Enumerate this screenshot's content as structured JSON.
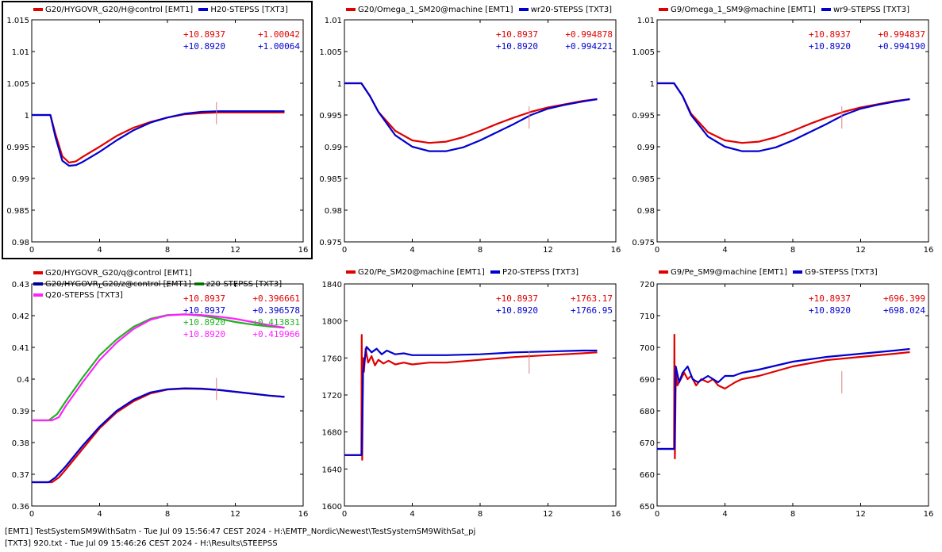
{
  "colors": {
    "emt": "#e00000",
    "txt": "#0000d0",
    "green": "#20b020",
    "magenta": "#ff20ff",
    "cursor": "#e08080"
  },
  "footer": {
    "line1": "[EMT1] TestSystemSM9WithSatm - Tue Jul 09 15:56:47 CEST 2024 - H:\\EMTP_Nordic\\Newest\\TestSystemSM9WithSat_pj",
    "line2": "[TXT3] 920.txt - Tue Jul 09 15:46:26 CEST 2024 - H:\\Results\\STEEPSS"
  },
  "chart_data": [
    {
      "type": "line",
      "legend": [
        {
          "name": "G20/HYGOVR_G20/H@control [EMT1]",
          "color": "emt"
        },
        {
          "name": "H20-STEPSS [TXT3]",
          "color": "txt"
        }
      ],
      "xlim": [
        0,
        16
      ],
      "xticks": [
        "0",
        "4",
        "8",
        "12",
        "16"
      ],
      "ylim": [
        0.98,
        1.015
      ],
      "yticks": [
        "1.015",
        "1.01",
        "1.005",
        "1",
        "0.995",
        "0.99",
        "0.985",
        "0.98"
      ],
      "cursor_x": 10.89,
      "readouts": [
        {
          "t": "+10.8937",
          "v": "+1.00042",
          "color": "emt"
        },
        {
          "t": "+10.8920",
          "v": "+1.00064",
          "color": "txt"
        }
      ],
      "series": [
        {
          "name": "G20/HYGOVR_G20/H@control [EMT1]",
          "color": "emt",
          "x": [
            0,
            1.1,
            1.4,
            1.8,
            2.2,
            2.6,
            3,
            4,
            5,
            6,
            7,
            8,
            9,
            10,
            11,
            12,
            13,
            14,
            14.9
          ],
          "y": [
            1,
            1,
            0.997,
            0.9935,
            0.9925,
            0.9927,
            0.9934,
            0.995,
            0.9967,
            0.998,
            0.9989,
            0.9996,
            1.0001,
            1.0003,
            1.0004,
            1.0004,
            1.0004,
            1.0004,
            1.0004
          ]
        },
        {
          "name": "H20-STEPSS [TXT3]",
          "color": "txt",
          "x": [
            0,
            1.1,
            1.4,
            1.8,
            2.2,
            2.6,
            3,
            4,
            5,
            6,
            7,
            8,
            9,
            10,
            11,
            12,
            13,
            14,
            14.9
          ],
          "y": [
            1,
            1,
            0.9965,
            0.9928,
            0.992,
            0.9921,
            0.9926,
            0.9942,
            0.996,
            0.9976,
            0.9988,
            0.9996,
            1.0002,
            1.0005,
            1.0006,
            1.0006,
            1.0006,
            1.0006,
            1.0006
          ]
        }
      ]
    },
    {
      "type": "line",
      "legend": [
        {
          "name": "G20/Omega_1_SM20@machine [EMT1]",
          "color": "emt"
        },
        {
          "name": "wr20-STEPSS [TXT3]",
          "color": "txt"
        }
      ],
      "xlim": [
        0,
        16
      ],
      "xticks": [
        "0",
        "4",
        "8",
        "12",
        "16"
      ],
      "ylim": [
        0.975,
        1.01
      ],
      "yticks": [
        "1.01",
        "1.005",
        "1",
        "0.995",
        "0.99",
        "0.985",
        "0.98",
        "0.975"
      ],
      "cursor_x": 10.89,
      "readouts": [
        {
          "t": "+10.8937",
          "v": "+0.994878",
          "color": "emt"
        },
        {
          "t": "+10.8920",
          "v": "+0.994221",
          "color": "txt"
        }
      ],
      "series": [
        {
          "name": "G20/Omega_1_SM20@machine [EMT1]",
          "color": "emt",
          "x": [
            0,
            1,
            1.5,
            2,
            3,
            4,
            5,
            6,
            7,
            8,
            9,
            10,
            11,
            12,
            13,
            14,
            14.9
          ],
          "y": [
            1,
            1,
            0.998,
            0.9955,
            0.9925,
            0.991,
            0.9906,
            0.9908,
            0.9915,
            0.9925,
            0.9936,
            0.9946,
            0.9955,
            0.9962,
            0.9967,
            0.9972,
            0.9975
          ]
        },
        {
          "name": "wr20-STEPSS [TXT3]",
          "color": "txt",
          "x": [
            0,
            1,
            1.5,
            2,
            3,
            4,
            5,
            6,
            7,
            8,
            9,
            10,
            11,
            12,
            13,
            14,
            14.9
          ],
          "y": [
            1,
            1,
            0.998,
            0.9955,
            0.9918,
            0.99,
            0.9893,
            0.9893,
            0.9899,
            0.991,
            0.9923,
            0.9936,
            0.995,
            0.996,
            0.9966,
            0.9971,
            0.9975
          ]
        }
      ]
    },
    {
      "type": "line",
      "legend": [
        {
          "name": "G9/Omega_1_SM9@machine [EMT1]",
          "color": "emt"
        },
        {
          "name": "wr9-STEPSS [TXT3]",
          "color": "txt"
        }
      ],
      "xlim": [
        0,
        16
      ],
      "xticks": [
        "0",
        "4",
        "8",
        "12",
        "16"
      ],
      "ylim": [
        0.975,
        1.01
      ],
      "yticks": [
        "1.01",
        "1.005",
        "1",
        "0.995",
        "0.99",
        "0.985",
        "0.98",
        "0.975"
      ],
      "cursor_x": 10.89,
      "readouts": [
        {
          "t": "+10.8937",
          "v": "+0.994837",
          "color": "emt"
        },
        {
          "t": "+10.8920",
          "v": "+0.994190",
          "color": "txt"
        }
      ],
      "series": [
        {
          "name": "G9/Omega_1_SM9@machine [EMT1]",
          "color": "emt",
          "x": [
            0,
            1,
            1.5,
            2,
            3,
            4,
            5,
            6,
            7,
            8,
            9,
            10,
            11,
            12,
            13,
            14,
            14.9
          ],
          "y": [
            1,
            1,
            0.998,
            0.9952,
            0.9923,
            0.991,
            0.9906,
            0.9908,
            0.9915,
            0.9925,
            0.9936,
            0.9946,
            0.9955,
            0.9962,
            0.9967,
            0.9972,
            0.9975
          ]
        },
        {
          "name": "wr9-STEPSS [TXT3]",
          "color": "txt",
          "x": [
            0,
            1,
            1.5,
            2,
            3,
            4,
            5,
            6,
            7,
            8,
            9,
            10,
            11,
            12,
            13,
            14,
            14.9
          ],
          "y": [
            1,
            1,
            0.998,
            0.995,
            0.9916,
            0.99,
            0.9893,
            0.9893,
            0.9899,
            0.991,
            0.9923,
            0.9936,
            0.995,
            0.996,
            0.9966,
            0.9971,
            0.9975
          ]
        }
      ]
    },
    {
      "type": "line",
      "legend": [
        {
          "name": "G20/HYGOVR_G20/q@control [EMT1]",
          "color": "emt"
        },
        {
          "name": "G20/HYGOVR_G20/z@control [EMT1]",
          "color": "txt"
        },
        {
          "name": "z20-STEPSS [TXT3]",
          "color": "green"
        },
        {
          "name": "Q20-STEPSS [TXT3]",
          "color": "magenta"
        }
      ],
      "xlim": [
        0,
        16
      ],
      "xticks": [
        "0",
        "4",
        "8",
        "12",
        "16"
      ],
      "ylim": [
        0.36,
        0.43
      ],
      "yticks": [
        "0.43",
        "0.42",
        "0.41",
        "0.4",
        "0.39",
        "0.38",
        "0.37",
        "0.36"
      ],
      "cursor_x": 10.89,
      "readouts": [
        {
          "t": "+10.8937",
          "v": "+0.396661",
          "color": "emt"
        },
        {
          "t": "+10.8937",
          "v": "+0.396578",
          "color": "txt"
        },
        {
          "t": "+10.8920",
          "v": "+0.413831",
          "color": "green"
        },
        {
          "t": "+10.8920",
          "v": "+0.419966",
          "color": "magenta"
        }
      ],
      "series": [
        {
          "name": "G20/HYGOVR_G20/q@control [EMT1]",
          "color": "emt",
          "x": [
            0,
            1.2,
            1.6,
            2,
            3,
            4,
            5,
            6,
            7,
            8,
            9,
            10,
            11,
            12,
            13,
            14,
            14.9
          ],
          "y": [
            0.3675,
            0.3675,
            0.369,
            0.3715,
            0.378,
            0.3845,
            0.3895,
            0.393,
            0.3955,
            0.3967,
            0.397,
            0.3969,
            0.3966,
            0.396,
            0.3954,
            0.3948,
            0.3944
          ]
        },
        {
          "name": "G20/HYGOVR_G20/z@control [EMT1]",
          "color": "txt",
          "x": [
            0,
            1,
            1.4,
            2,
            3,
            4,
            5,
            6,
            7,
            8,
            9,
            10,
            11,
            12,
            13,
            14,
            14.9
          ],
          "y": [
            0.3675,
            0.3675,
            0.369,
            0.3725,
            0.379,
            0.385,
            0.39,
            0.3935,
            0.3958,
            0.3968,
            0.3971,
            0.397,
            0.3966,
            0.396,
            0.3954,
            0.3948,
            0.3944
          ]
        },
        {
          "name": "z20-STEPSS [TXT3]",
          "color": "green",
          "x": [
            0,
            1,
            1.5,
            2,
            3,
            4,
            5,
            6,
            7,
            8,
            9,
            10,
            11,
            12,
            13,
            14,
            14.9
          ],
          "y": [
            0.387,
            0.387,
            0.389,
            0.393,
            0.4005,
            0.4075,
            0.4125,
            0.4165,
            0.419,
            0.4202,
            0.4204,
            0.42,
            0.4191,
            0.418,
            0.4172,
            0.4166,
            0.4162
          ]
        },
        {
          "name": "Q20-STEPSS [TXT3]",
          "color": "magenta",
          "x": [
            0,
            1.2,
            1.6,
            2,
            3,
            4,
            5,
            6,
            7,
            8,
            9,
            10,
            11,
            12,
            13,
            14,
            14.9
          ],
          "y": [
            0.387,
            0.387,
            0.388,
            0.3915,
            0.399,
            0.406,
            0.4115,
            0.4158,
            0.4187,
            0.4201,
            0.4204,
            0.4202,
            0.4197,
            0.419,
            0.418,
            0.417,
            0.4162
          ]
        }
      ]
    },
    {
      "type": "line",
      "legend": [
        {
          "name": "G20/Pe_SM20@machine [EMT1]",
          "color": "emt"
        },
        {
          "name": "P20-STEPSS [TXT3]",
          "color": "txt"
        }
      ],
      "xlim": [
        0,
        16
      ],
      "xticks": [
        "0",
        "4",
        "8",
        "12",
        "16"
      ],
      "ylim": [
        1600,
        1840
      ],
      "yticks": [
        "1840",
        "1800",
        "1760",
        "1720",
        "1680",
        "1640",
        "1600"
      ],
      "cursor_x": 10.89,
      "readouts": [
        {
          "t": "+10.8937",
          "v": "+1763.17",
          "color": "emt"
        },
        {
          "t": "+10.8920",
          "v": "+1766.95",
          "color": "txt"
        }
      ],
      "series": [
        {
          "name": "G20/Pe_SM20@machine [EMT1]",
          "color": "emt",
          "x": [
            0,
            1,
            1.02,
            1.05,
            1.1,
            1.15,
            1.25,
            1.4,
            1.6,
            1.8,
            2,
            2.3,
            2.6,
            3,
            3.5,
            4,
            5,
            6,
            8,
            10,
            12,
            14,
            14.9
          ],
          "y": [
            1655,
            1655,
            1785,
            1650,
            1760,
            1745,
            1770,
            1755,
            1762,
            1752,
            1758,
            1754,
            1757,
            1753,
            1755,
            1753,
            1755,
            1755,
            1758,
            1761,
            1763,
            1765,
            1766
          ]
        },
        {
          "name": "P20-STEPSS [TXT3]",
          "color": "txt",
          "x": [
            0,
            1,
            1.02,
            1.1,
            1.3,
            1.6,
            1.9,
            2.2,
            2.5,
            3,
            3.5,
            4,
            5,
            6,
            8,
            10,
            12,
            14,
            14.9
          ],
          "y": [
            1655,
            1655,
            1655,
            1745,
            1772,
            1766,
            1770,
            1764,
            1768,
            1764,
            1765,
            1763,
            1763,
            1763,
            1764,
            1766,
            1767,
            1768,
            1768
          ]
        }
      ]
    },
    {
      "type": "line",
      "legend": [
        {
          "name": "G9/Pe_SM9@machine [EMT1]",
          "color": "emt"
        },
        {
          "name": "G9-STEPSS [TXT3]",
          "color": "txt"
        }
      ],
      "xlim": [
        0,
        16
      ],
      "xticks": [
        "0",
        "4",
        "8",
        "12",
        "16"
      ],
      "ylim": [
        650,
        720
      ],
      "yticks": [
        "720",
        "710",
        "700",
        "690",
        "680",
        "670",
        "660",
        "650"
      ],
      "cursor_x": 10.89,
      "readouts": [
        {
          "t": "+10.8937",
          "v": "+696.399",
          "color": "emt"
        },
        {
          "t": "+10.8920",
          "v": "+698.024",
          "color": "txt"
        }
      ],
      "series": [
        {
          "name": "G9/Pe_SM9@machine [EMT1]",
          "color": "emt",
          "x": [
            0,
            1,
            1.02,
            1.05,
            1.1,
            1.2,
            1.4,
            1.6,
            1.8,
            2,
            2.3,
            2.6,
            3,
            3.3,
            3.6,
            4,
            4.3,
            4.6,
            5,
            6,
            8,
            10,
            12,
            14,
            14.9
          ],
          "y": [
            668,
            668,
            704,
            665,
            692,
            688,
            690,
            692,
            690,
            691,
            688,
            690,
            689,
            690,
            688,
            687,
            688,
            689,
            690,
            691,
            694,
            696,
            697,
            698,
            698.5
          ]
        },
        {
          "name": "G9-STEPSS [TXT3]",
          "color": "txt",
          "x": [
            0,
            1,
            1.02,
            1.1,
            1.3,
            1.5,
            1.8,
            2.1,
            2.4,
            2.7,
            3,
            3.3,
            3.6,
            4,
            4.5,
            5,
            6,
            8,
            10,
            12,
            14,
            14.9
          ],
          "y": [
            668,
            668,
            668,
            694,
            689,
            692,
            694,
            690,
            689,
            690,
            691,
            690,
            689,
            691,
            691,
            692,
            693,
            695.5,
            697,
            698,
            699,
            699.5
          ]
        }
      ]
    }
  ]
}
